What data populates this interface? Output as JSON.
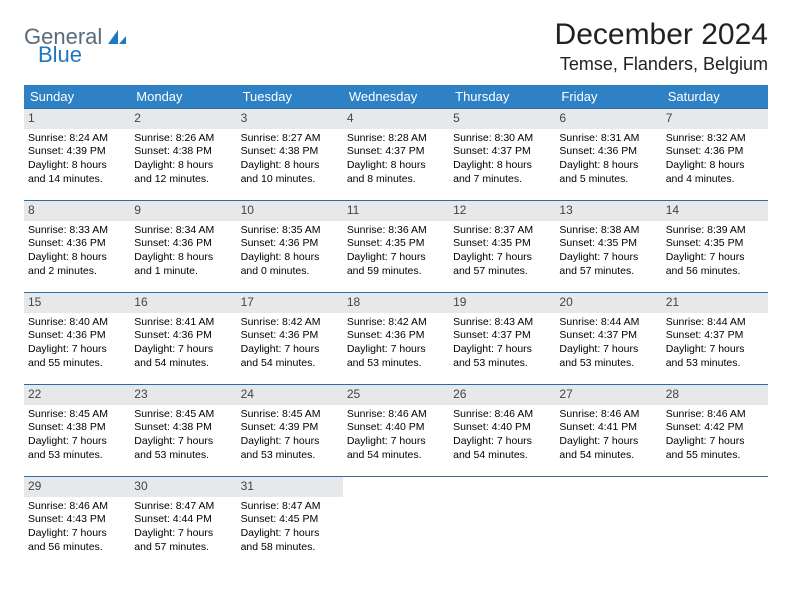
{
  "logo": {
    "text1": "General",
    "text2": "Blue"
  },
  "title": "December 2024",
  "location": "Temse, Flanders, Belgium",
  "colors": {
    "header_bg": "#2f81c5",
    "header_text": "#ffffff",
    "daynum_bg": "#e6e8ea",
    "week_border": "#2f6aa0",
    "logo_gray": "#5a6b7a",
    "logo_blue": "#1f77c0"
  },
  "day_headers": [
    "Sunday",
    "Monday",
    "Tuesday",
    "Wednesday",
    "Thursday",
    "Friday",
    "Saturday"
  ],
  "weeks": [
    [
      {
        "n": "1",
        "sr": "Sunrise: 8:24 AM",
        "ss": "Sunset: 4:39 PM",
        "d1": "Daylight: 8 hours",
        "d2": "and 14 minutes."
      },
      {
        "n": "2",
        "sr": "Sunrise: 8:26 AM",
        "ss": "Sunset: 4:38 PM",
        "d1": "Daylight: 8 hours",
        "d2": "and 12 minutes."
      },
      {
        "n": "3",
        "sr": "Sunrise: 8:27 AM",
        "ss": "Sunset: 4:38 PM",
        "d1": "Daylight: 8 hours",
        "d2": "and 10 minutes."
      },
      {
        "n": "4",
        "sr": "Sunrise: 8:28 AM",
        "ss": "Sunset: 4:37 PM",
        "d1": "Daylight: 8 hours",
        "d2": "and 8 minutes."
      },
      {
        "n": "5",
        "sr": "Sunrise: 8:30 AM",
        "ss": "Sunset: 4:37 PM",
        "d1": "Daylight: 8 hours",
        "d2": "and 7 minutes."
      },
      {
        "n": "6",
        "sr": "Sunrise: 8:31 AM",
        "ss": "Sunset: 4:36 PM",
        "d1": "Daylight: 8 hours",
        "d2": "and 5 minutes."
      },
      {
        "n": "7",
        "sr": "Sunrise: 8:32 AM",
        "ss": "Sunset: 4:36 PM",
        "d1": "Daylight: 8 hours",
        "d2": "and 4 minutes."
      }
    ],
    [
      {
        "n": "8",
        "sr": "Sunrise: 8:33 AM",
        "ss": "Sunset: 4:36 PM",
        "d1": "Daylight: 8 hours",
        "d2": "and 2 minutes."
      },
      {
        "n": "9",
        "sr": "Sunrise: 8:34 AM",
        "ss": "Sunset: 4:36 PM",
        "d1": "Daylight: 8 hours",
        "d2": "and 1 minute."
      },
      {
        "n": "10",
        "sr": "Sunrise: 8:35 AM",
        "ss": "Sunset: 4:36 PM",
        "d1": "Daylight: 8 hours",
        "d2": "and 0 minutes."
      },
      {
        "n": "11",
        "sr": "Sunrise: 8:36 AM",
        "ss": "Sunset: 4:35 PM",
        "d1": "Daylight: 7 hours",
        "d2": "and 59 minutes."
      },
      {
        "n": "12",
        "sr": "Sunrise: 8:37 AM",
        "ss": "Sunset: 4:35 PM",
        "d1": "Daylight: 7 hours",
        "d2": "and 57 minutes."
      },
      {
        "n": "13",
        "sr": "Sunrise: 8:38 AM",
        "ss": "Sunset: 4:35 PM",
        "d1": "Daylight: 7 hours",
        "d2": "and 57 minutes."
      },
      {
        "n": "14",
        "sr": "Sunrise: 8:39 AM",
        "ss": "Sunset: 4:35 PM",
        "d1": "Daylight: 7 hours",
        "d2": "and 56 minutes."
      }
    ],
    [
      {
        "n": "15",
        "sr": "Sunrise: 8:40 AM",
        "ss": "Sunset: 4:36 PM",
        "d1": "Daylight: 7 hours",
        "d2": "and 55 minutes."
      },
      {
        "n": "16",
        "sr": "Sunrise: 8:41 AM",
        "ss": "Sunset: 4:36 PM",
        "d1": "Daylight: 7 hours",
        "d2": "and 54 minutes."
      },
      {
        "n": "17",
        "sr": "Sunrise: 8:42 AM",
        "ss": "Sunset: 4:36 PM",
        "d1": "Daylight: 7 hours",
        "d2": "and 54 minutes."
      },
      {
        "n": "18",
        "sr": "Sunrise: 8:42 AM",
        "ss": "Sunset: 4:36 PM",
        "d1": "Daylight: 7 hours",
        "d2": "and 53 minutes."
      },
      {
        "n": "19",
        "sr": "Sunrise: 8:43 AM",
        "ss": "Sunset: 4:37 PM",
        "d1": "Daylight: 7 hours",
        "d2": "and 53 minutes."
      },
      {
        "n": "20",
        "sr": "Sunrise: 8:44 AM",
        "ss": "Sunset: 4:37 PM",
        "d1": "Daylight: 7 hours",
        "d2": "and 53 minutes."
      },
      {
        "n": "21",
        "sr": "Sunrise: 8:44 AM",
        "ss": "Sunset: 4:37 PM",
        "d1": "Daylight: 7 hours",
        "d2": "and 53 minutes."
      }
    ],
    [
      {
        "n": "22",
        "sr": "Sunrise: 8:45 AM",
        "ss": "Sunset: 4:38 PM",
        "d1": "Daylight: 7 hours",
        "d2": "and 53 minutes."
      },
      {
        "n": "23",
        "sr": "Sunrise: 8:45 AM",
        "ss": "Sunset: 4:38 PM",
        "d1": "Daylight: 7 hours",
        "d2": "and 53 minutes."
      },
      {
        "n": "24",
        "sr": "Sunrise: 8:45 AM",
        "ss": "Sunset: 4:39 PM",
        "d1": "Daylight: 7 hours",
        "d2": "and 53 minutes."
      },
      {
        "n": "25",
        "sr": "Sunrise: 8:46 AM",
        "ss": "Sunset: 4:40 PM",
        "d1": "Daylight: 7 hours",
        "d2": "and 54 minutes."
      },
      {
        "n": "26",
        "sr": "Sunrise: 8:46 AM",
        "ss": "Sunset: 4:40 PM",
        "d1": "Daylight: 7 hours",
        "d2": "and 54 minutes."
      },
      {
        "n": "27",
        "sr": "Sunrise: 8:46 AM",
        "ss": "Sunset: 4:41 PM",
        "d1": "Daylight: 7 hours",
        "d2": "and 54 minutes."
      },
      {
        "n": "28",
        "sr": "Sunrise: 8:46 AM",
        "ss": "Sunset: 4:42 PM",
        "d1": "Daylight: 7 hours",
        "d2": "and 55 minutes."
      }
    ],
    [
      {
        "n": "29",
        "sr": "Sunrise: 8:46 AM",
        "ss": "Sunset: 4:43 PM",
        "d1": "Daylight: 7 hours",
        "d2": "and 56 minutes."
      },
      {
        "n": "30",
        "sr": "Sunrise: 8:47 AM",
        "ss": "Sunset: 4:44 PM",
        "d1": "Daylight: 7 hours",
        "d2": "and 57 minutes."
      },
      {
        "n": "31",
        "sr": "Sunrise: 8:47 AM",
        "ss": "Sunset: 4:45 PM",
        "d1": "Daylight: 7 hours",
        "d2": "and 58 minutes."
      },
      null,
      null,
      null,
      null
    ]
  ]
}
